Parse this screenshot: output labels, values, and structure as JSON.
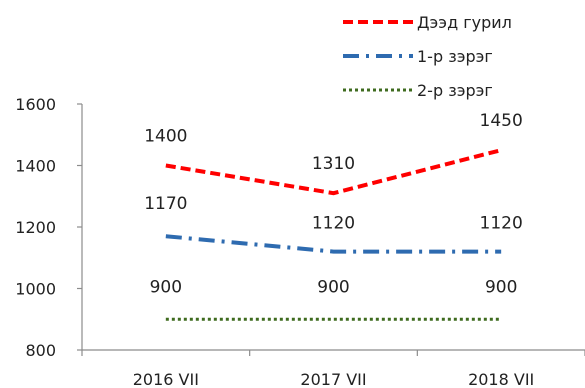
{
  "chart_data": {
    "type": "line",
    "title": "",
    "xlabel": "",
    "ylabel": "",
    "categories": [
      "2016 VII",
      "2017 VII",
      "2018 VII"
    ],
    "ylim": [
      800,
      1600
    ],
    "yticks": [
      800,
      1000,
      1200,
      1400,
      1600
    ],
    "grid": false,
    "legend_position": "top-right",
    "series": [
      {
        "name": "Дээд гурил",
        "values": [
          1400,
          1310,
          1450
        ],
        "color": "#ff0000",
        "style": "dashed"
      },
      {
        "name": "1-р зэрэг",
        "values": [
          1170,
          1120,
          1120
        ],
        "color": "#2e6bb0",
        "style": "dash-dot"
      },
      {
        "name": "2-р зэрэг",
        "values": [
          900,
          900,
          900
        ],
        "color": "#3f6b1f",
        "style": "dotted"
      }
    ]
  }
}
